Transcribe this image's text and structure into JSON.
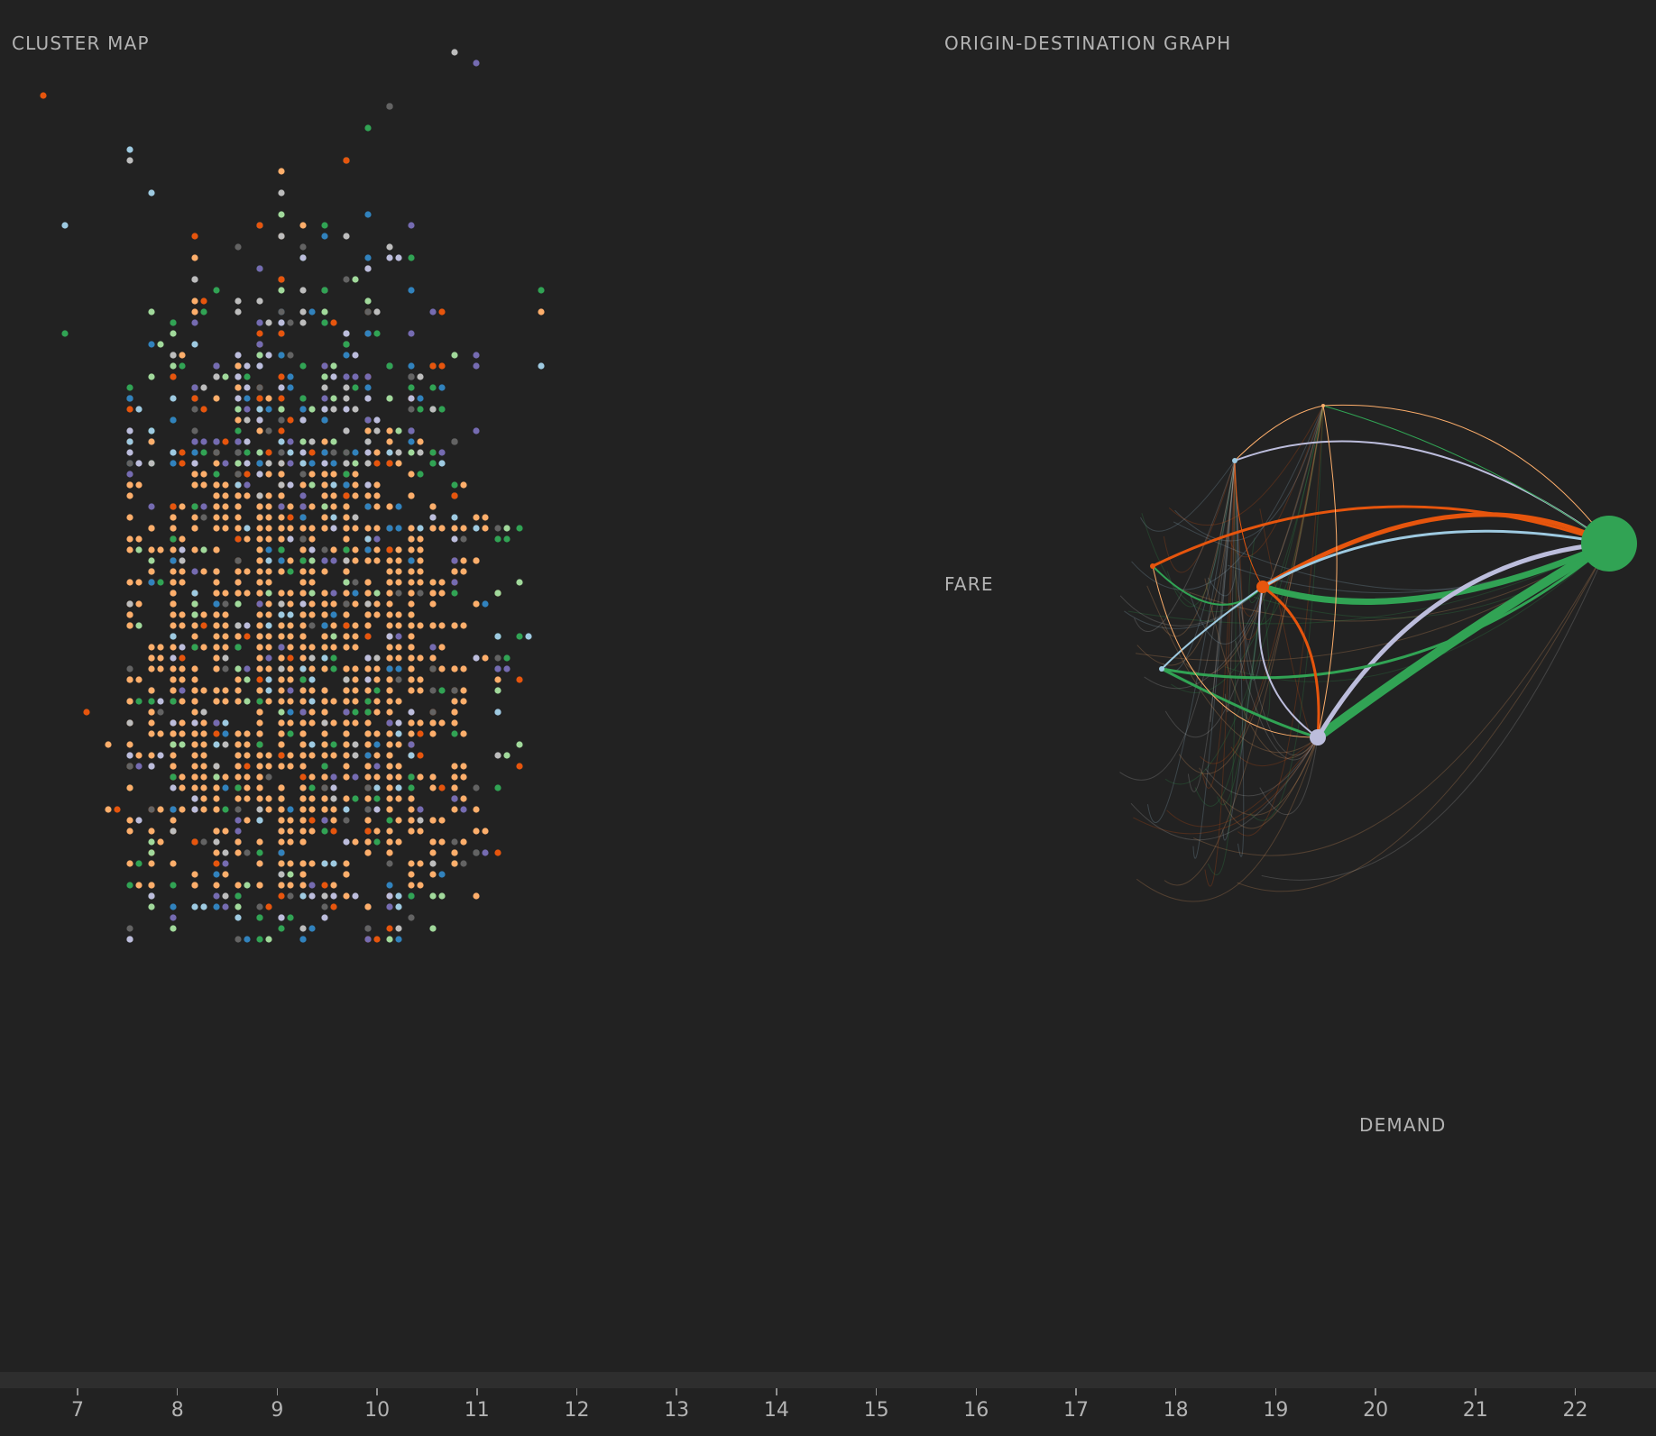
{
  "colors": {
    "background": "#222222",
    "peach": "#fdae6b",
    "orange": "#e6550d",
    "blue": "#3182bd",
    "light_blue": "#9ecae1",
    "lavender": "#bcbddc",
    "purple": "#756bb1",
    "green": "#31a354",
    "light_green": "#a1d99b",
    "gray": "#636363",
    "light_gray": "#bdbdbd"
  },
  "chart_data": [
    {
      "type": "scatter",
      "title": "CLUSTER MAP",
      "xlabel": "",
      "ylabel": "",
      "x_grid_step": 0.217,
      "note_structure": "cells on a regular grid; most densely populated in the center",
      "series": [
        {
          "name": "",
          "color": "#fdae6b"
        },
        {
          "name": "",
          "color": "#e6550d"
        },
        {
          "name": "",
          "color": "#3182bd"
        },
        {
          "name": "",
          "color": "#9ecae1"
        },
        {
          "name": "",
          "color": "#bcbddc"
        },
        {
          "name": "",
          "color": "#756bb1"
        },
        {
          "name": "",
          "color": "#31a354"
        },
        {
          "name": "",
          "color": "#a1d99b"
        },
        {
          "name": "",
          "color": "#636363"
        },
        {
          "name": "",
          "color": "#bdbdbd"
        }
      ]
    },
    {
      "type": "scatter",
      "title": "ORIGIN-DESTINATION GRAPH",
      "xlabel": "DEMAND",
      "ylabel": "FARE",
      "nodes": [
        {
          "id": "A",
          "color": "#31a354"
        },
        {
          "id": "B",
          "color": "#e6550d"
        },
        {
          "id": "C",
          "color": "#bcbddc"
        },
        {
          "id": "D",
          "color": "#e6550d"
        },
        {
          "id": "E",
          "color": "#9ecae1"
        },
        {
          "id": "F",
          "color": "#9ecae1"
        },
        {
          "id": "G",
          "color": "#fdae6b"
        }
      ],
      "edges": [
        {
          "from": "C",
          "to": "A",
          "weight": 10,
          "color": "#31a354"
        },
        {
          "from": "B",
          "to": "A",
          "weight": 7,
          "color": "#31a354"
        },
        {
          "from": "B",
          "to": "A",
          "weight": 5,
          "color": "#e6550d"
        },
        {
          "from": "C",
          "to": "A",
          "weight": 5,
          "color": "#bcbddc"
        },
        {
          "from": "D",
          "to": "A",
          "weight": 3,
          "color": "#e6550d"
        },
        {
          "from": "B",
          "to": "A",
          "weight": 3,
          "color": "#9ecae1"
        },
        {
          "from": "E",
          "to": "A",
          "weight": 3,
          "color": "#31a354"
        },
        {
          "from": "F",
          "to": "A",
          "weight": 2,
          "color": "#bcbddc"
        },
        {
          "from": "B",
          "to": "C",
          "weight": 3,
          "color": "#e6550d"
        },
        {
          "from": "B",
          "to": "C",
          "weight": 2,
          "color": "#bcbddc"
        },
        {
          "from": "E",
          "to": "C",
          "weight": 3,
          "color": "#31a354"
        },
        {
          "from": "D",
          "to": "B",
          "weight": 2,
          "color": "#31a354"
        },
        {
          "from": "E",
          "to": "B",
          "weight": 2,
          "color": "#9ecae1"
        },
        {
          "from": "G",
          "to": "A",
          "weight": 1,
          "color": "#fdae6b"
        },
        {
          "from": "F",
          "to": "B",
          "weight": 1,
          "color": "#e6550d"
        },
        {
          "from": "F",
          "to": "G",
          "weight": 1,
          "color": "#fdae6b"
        },
        {
          "from": "D",
          "to": "C",
          "weight": 1,
          "color": "#fdae6b"
        },
        {
          "from": "G",
          "to": "C",
          "weight": 1,
          "color": "#fdae6b"
        },
        {
          "from": "G",
          "to": "A",
          "weight": 1,
          "color": "#31a354"
        }
      ]
    },
    {
      "type": "line",
      "title": "",
      "xlim": [
        6.2,
        22.8
      ],
      "ticks": [
        "7",
        "8",
        "9",
        "10",
        "11",
        "12",
        "13",
        "14",
        "15",
        "16",
        "17",
        "18",
        "19",
        "20",
        "21",
        "22"
      ]
    }
  ]
}
